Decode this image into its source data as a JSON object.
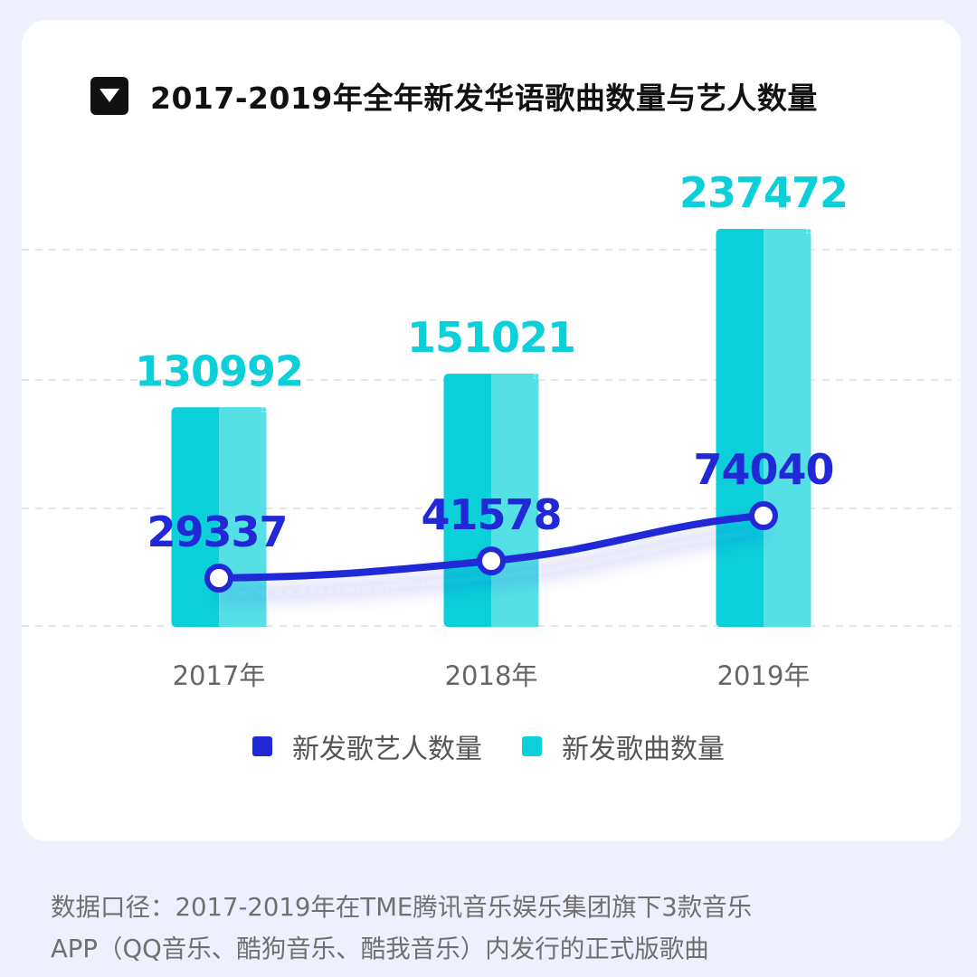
{
  "title": "2017-2019年全年新发华语歌曲数量与艺人数量",
  "colors": {
    "background": "#EEF0FD",
    "card": "#FFFFFF",
    "bar_dark": "#0BCFD9",
    "bar_light": "#55E0E6",
    "line": "#2128D6",
    "grid": "#E6E6E6"
  },
  "icons": {
    "title_toggle": "triangle-down-icon"
  },
  "chart_data": {
    "type": "bar+line",
    "categories": [
      "2017年",
      "2018年",
      "2019年"
    ],
    "series": [
      {
        "name": "新发歌曲数量",
        "type": "bar",
        "values": [
          130992,
          151021,
          237472
        ],
        "color": "#0BCFD9"
      },
      {
        "name": "新发歌艺人数量",
        "type": "line",
        "values": [
          29337,
          41578,
          74040
        ],
        "color": "#2128D6"
      }
    ],
    "grid": true,
    "legend_position": "bottom"
  },
  "legend": [
    {
      "label": "新发歌艺人数量",
      "color": "#2128D6"
    },
    {
      "label": "新发歌曲数量",
      "color": "#0BCFD9"
    }
  ],
  "footnote": {
    "line1": "数据口径：2017-2019年在TME腾讯音乐娱乐集团旗下3款音乐",
    "line2": "APP（QQ音乐、酷狗音乐、酷我音乐）内发行的正式版歌曲"
  }
}
